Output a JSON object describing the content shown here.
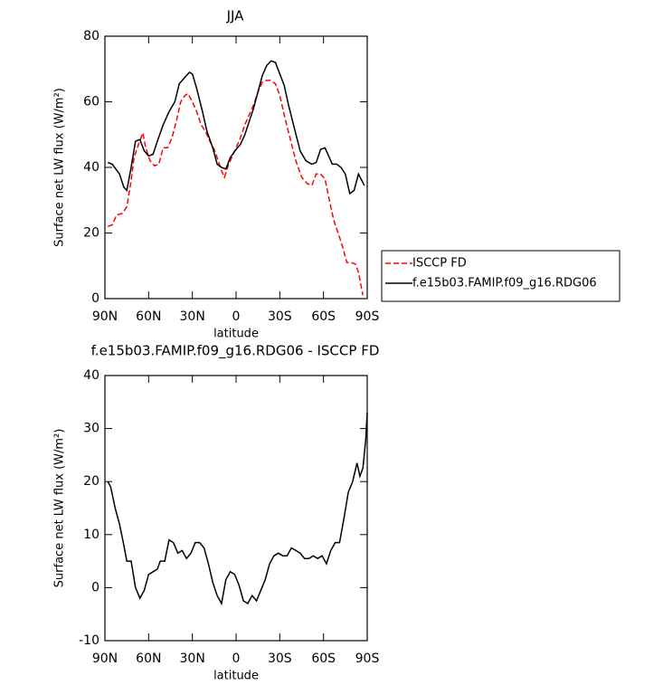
{
  "chart_data": [
    {
      "type": "line",
      "title": "JJA",
      "xlabel": "latitude",
      "ylabel": "Surface net LW flux (W/m²)",
      "xlim": [
        90,
        -90
      ],
      "ylim": [
        0,
        80
      ],
      "xticks": [
        {
          "value": 90,
          "label": "90N"
        },
        {
          "value": 60,
          "label": "60N"
        },
        {
          "value": 30,
          "label": "30N"
        },
        0,
        {
          "value": -30,
          "label": "30S"
        },
        {
          "value": -60,
          "label": "60S"
        },
        {
          "value": -90,
          "label": "90S"
        }
      ],
      "yticks": [
        0,
        20,
        40,
        60,
        80
      ],
      "legend": "right",
      "series": [
        {
          "name": "ISCCP FD",
          "color": "#ff0000",
          "dashed": true,
          "x": [
            88,
            85,
            82,
            78,
            75,
            72,
            70,
            67,
            64,
            62,
            59,
            56,
            53,
            50,
            47,
            44,
            41,
            38,
            35,
            33,
            30,
            27,
            24,
            21,
            18,
            15,
            13,
            10,
            8,
            5,
            2,
            0,
            -3,
            -6,
            -9,
            -12,
            -15,
            -18,
            -21,
            -24,
            -27,
            -30,
            -33,
            -37,
            -41,
            -45,
            -49,
            -52,
            -55,
            -58,
            -61,
            -64,
            -67,
            -70,
            -73,
            -76,
            -79,
            -82,
            -84,
            -87
          ],
          "values": [
            22,
            22.5,
            25.5,
            26,
            28,
            36,
            43,
            47,
            50.5,
            46,
            42,
            40.5,
            41,
            46,
            46,
            49,
            54,
            60,
            62,
            62.5,
            60,
            57,
            53,
            51,
            48,
            45.5,
            43,
            39,
            37,
            41,
            44,
            46,
            49,
            53,
            56,
            59,
            63,
            66,
            66.5,
            66.5,
            65.5,
            62,
            56,
            49,
            42,
            37,
            35,
            34.5,
            38,
            38,
            36.5,
            30,
            24,
            20,
            16,
            11,
            11,
            10.5,
            8,
            1
          ]
        },
        {
          "name": "f.e15b03.FAMIP.f09_g16.RDG06",
          "color": "#000000",
          "dashed": false,
          "x": [
            88,
            85,
            80,
            77,
            75,
            72,
            69,
            66,
            63,
            60,
            57,
            54,
            50,
            46,
            42,
            39,
            35,
            32,
            30,
            27,
            23,
            20,
            16,
            13,
            10,
            7,
            4,
            0,
            -3,
            -6,
            -9,
            -12,
            -15,
            -18,
            -21,
            -24,
            -27,
            -30,
            -33,
            -36,
            -40,
            -44,
            -48,
            -52,
            -55,
            -58,
            -61,
            -64,
            -66,
            -69,
            -72,
            -75,
            -78,
            -81,
            -84,
            -88
          ],
          "values": [
            41.5,
            41,
            38,
            34,
            33,
            40,
            48,
            48.5,
            45,
            43.5,
            44,
            48,
            53,
            57,
            60,
            65.5,
            67.5,
            69,
            68.5,
            64,
            57,
            51,
            46,
            41,
            40,
            39.5,
            43,
            45.5,
            47,
            50,
            54,
            58,
            63,
            68,
            71,
            72.5,
            72,
            68.5,
            65,
            59,
            52,
            45,
            42,
            41,
            41.5,
            45.5,
            46,
            43,
            41,
            41,
            40,
            38,
            32,
            33,
            38,
            34.5
          ]
        }
      ]
    },
    {
      "type": "line",
      "title": "f.e15b03.FAMIP.f09_g16.RDG06 - ISCCP FD",
      "xlabel": "latitude",
      "ylabel": "Surface net LW flux (W/m²)",
      "xlim": [
        90,
        -90
      ],
      "ylim": [
        -10,
        40
      ],
      "xticks": [
        {
          "value": 90,
          "label": "90N"
        },
        {
          "value": 60,
          "label": "60N"
        },
        {
          "value": 30,
          "label": "30N"
        },
        0,
        {
          "value": -30,
          "label": "30S"
        },
        {
          "value": -60,
          "label": "60S"
        },
        {
          "value": -90,
          "label": "90S"
        }
      ],
      "yticks": [
        -10,
        0,
        10,
        20,
        30,
        40
      ],
      "series": [
        {
          "color": "#000000",
          "dashed": false,
          "x": [
            88,
            86,
            83,
            80,
            77,
            75,
            72,
            69,
            66,
            63,
            60,
            57,
            54,
            52,
            49,
            46,
            43,
            40,
            37,
            34,
            31,
            28,
            25,
            22,
            19,
            16,
            13,
            10,
            7,
            4,
            1,
            -2,
            -5,
            -8,
            -11,
            -14,
            -17,
            -20,
            -23,
            -26,
            -29,
            -32,
            -35,
            -38,
            -41,
            -44,
            -47,
            -50,
            -53,
            -56,
            -59,
            -62,
            -65,
            -68,
            -71,
            -74,
            -77,
            -80,
            -83,
            -85,
            -87,
            -89,
            -90
          ],
          "values": [
            20,
            19,
            15,
            12,
            8,
            5,
            5,
            0,
            -2,
            -0.5,
            2.5,
            3,
            3.5,
            5,
            5,
            9,
            8.5,
            6.5,
            7,
            5.5,
            6.5,
            8.5,
            8.5,
            7.5,
            4.5,
            1,
            -1.5,
            -3,
            1.5,
            3,
            2.5,
            0.5,
            -2.5,
            -3,
            -1.5,
            -2.5,
            -0.5,
            1.5,
            4.5,
            6,
            6.5,
            6,
            6,
            7.5,
            7,
            6.5,
            5.5,
            5.5,
            6,
            5.5,
            6,
            4.5,
            7,
            8.5,
            8.5,
            13,
            18,
            20,
            23.5,
            21,
            22.5,
            28,
            33
          ]
        }
      ]
    }
  ]
}
